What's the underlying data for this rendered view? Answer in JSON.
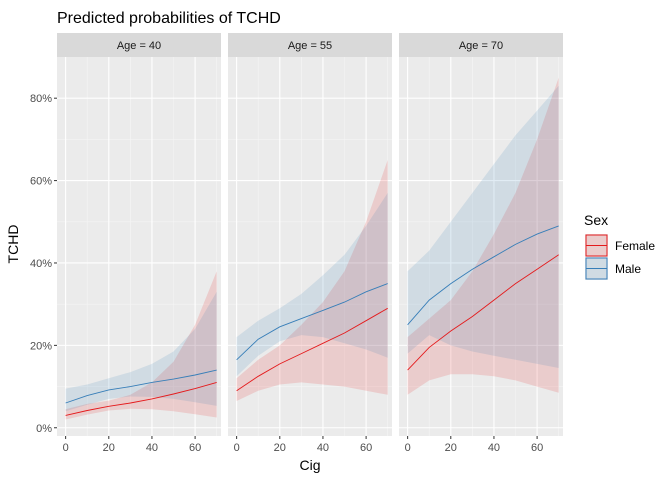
{
  "chart_data": {
    "type": "line",
    "title": "Predicted probabilities of TCHD",
    "xlabel": "Cig",
    "ylabel": "TCHD",
    "xlim": [
      -4,
      72
    ],
    "ylim": [
      -2,
      90
    ],
    "x_ticks": [
      0,
      20,
      40,
      60
    ],
    "y_ticks": [
      0,
      20,
      40,
      60,
      80
    ],
    "y_tick_labels": [
      "0%",
      "20%",
      "40%",
      "60%",
      "80%"
    ],
    "grid": true,
    "legend": {
      "title": "Sex",
      "position": "right",
      "entries": [
        "Female",
        "Male"
      ]
    },
    "colors": {
      "Female": "#e41a1c",
      "Male": "#377eb8"
    },
    "panels": [
      {
        "label": "Age = 40",
        "series": [
          {
            "name": "Female",
            "x": [
              0,
              10,
              20,
              30,
              40,
              50,
              60,
              70
            ],
            "y": [
              3,
              4.2,
              5.2,
              6,
              7,
              8.2,
              9.5,
              11
            ],
            "lower": [
              2,
              3.2,
              4.2,
              4.6,
              4.5,
              4,
              3.3,
              2.5
            ],
            "upper": [
              4.5,
              5.8,
              6.6,
              8,
              11,
              16,
              25,
              38
            ]
          },
          {
            "name": "Male",
            "x": [
              0,
              10,
              20,
              30,
              40,
              50,
              60,
              70
            ],
            "y": [
              6,
              7.8,
              9.2,
              10,
              11,
              11.8,
              12.8,
              14
            ],
            "lower": [
              4,
              5.6,
              7,
              7.6,
              7.5,
              7,
              6.2,
              5.3
            ],
            "upper": [
              9.5,
              10.5,
              12,
              13.5,
              15.5,
              18.5,
              24,
              33
            ]
          }
        ]
      },
      {
        "label": "Age = 55",
        "series": [
          {
            "name": "Female",
            "x": [
              0,
              10,
              20,
              30,
              40,
              50,
              60,
              70
            ],
            "y": [
              9,
              12.5,
              15.5,
              18,
              20.5,
              23,
              26,
              29
            ],
            "lower": [
              6.5,
              9,
              10.5,
              11,
              10.5,
              10,
              9,
              8
            ],
            "upper": [
              12,
              16.5,
              20,
              25,
              30.5,
              38,
              50,
              65
            ]
          },
          {
            "name": "Male",
            "x": [
              0,
              10,
              20,
              30,
              40,
              50,
              60,
              70
            ],
            "y": [
              16.5,
              21.5,
              24.5,
              26.5,
              28.5,
              30.5,
              33,
              35
            ],
            "lower": [
              12.5,
              17.5,
              21,
              22.5,
              22,
              20.5,
              19,
              17
            ],
            "upper": [
              22,
              26,
              29,
              32.5,
              37,
              42,
              49,
              57
            ]
          }
        ]
      },
      {
        "label": "Age = 70",
        "series": [
          {
            "name": "Female",
            "x": [
              0,
              10,
              20,
              30,
              40,
              50,
              60,
              70
            ],
            "y": [
              14,
              19.5,
              23.5,
              27,
              31,
              35,
              38.5,
              42
            ],
            "lower": [
              8,
              11.5,
              13,
              13,
              12.5,
              11.5,
              10,
              8.5
            ],
            "upper": [
              22,
              26.5,
              31,
              38,
              47,
              57,
              70,
              85
            ]
          },
          {
            "name": "Male",
            "x": [
              0,
              10,
              20,
              30,
              40,
              50,
              60,
              70
            ],
            "y": [
              25,
              31,
              35,
              38.5,
              41.5,
              44.5,
              47,
              49
            ],
            "lower": [
              18,
              22.5,
              20,
              18.5,
              17.5,
              16.5,
              15.5,
              14.5
            ],
            "upper": [
              38,
              43,
              50,
              57,
              64,
              71,
              77,
              83
            ]
          }
        ]
      }
    ]
  }
}
